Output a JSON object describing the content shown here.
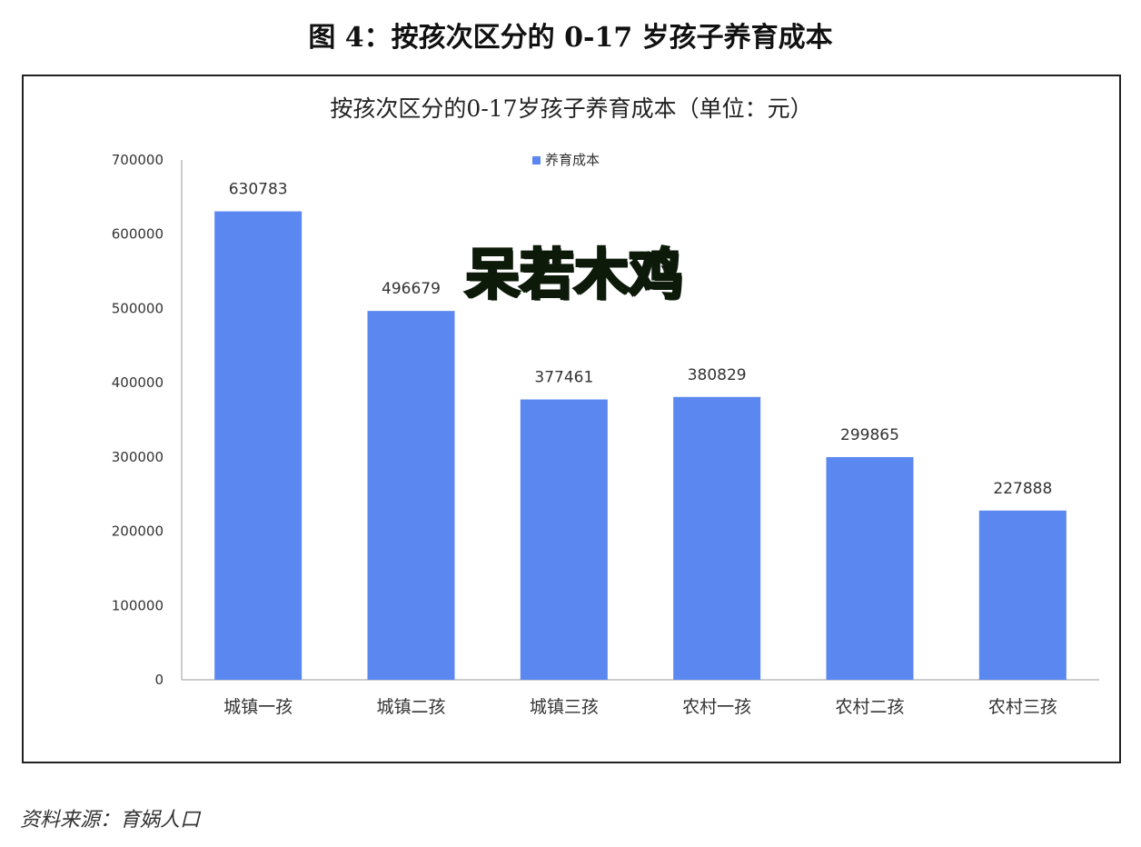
{
  "page": {
    "title": "图 4：按孩次区分的 0-17 岁孩子养育成本",
    "source": "资料来源：育娲人口",
    "watermark": "呆若木鸡"
  },
  "chart_data": {
    "type": "bar",
    "title": "按孩次区分的0-17岁孩子养育成本（单位：元）",
    "legend_label": "养育成本",
    "legend_position": "top-center",
    "categories": [
      "城镇一孩",
      "城镇二孩",
      "城镇三孩",
      "农村一孩",
      "农村二孩",
      "农村三孩"
    ],
    "series": [
      {
        "name": "养育成本",
        "values": [
          630783,
          496679,
          377461,
          380829,
          299865,
          227888
        ]
      }
    ],
    "ylim": [
      0,
      700000
    ],
    "yticks": [
      "0",
      "100000",
      "200000",
      "300000",
      "400000",
      "500000",
      "600000",
      "700000"
    ],
    "grid": false,
    "bar_color": "#5b87f0"
  }
}
